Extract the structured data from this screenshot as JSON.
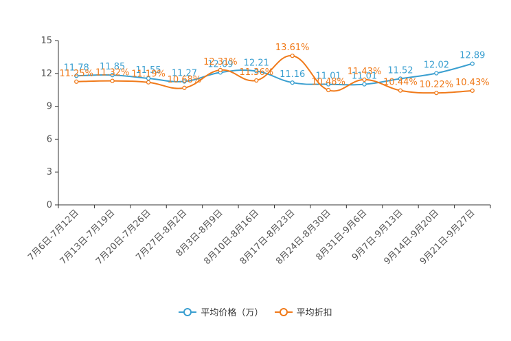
{
  "chart_data": {
    "type": "line",
    "categories": [
      "7月6日-7月12日",
      "7月13日-7月19日",
      "7月20日-7月26日",
      "7月27日-8月2日",
      "8月3日-8月9日",
      "8月10日-8月16日",
      "8月17日-8月23日",
      "8月24日-8月30日",
      "8月31日-9月6日",
      "9月7日-9月13日",
      "9月14日-9月20日",
      "9月21日-9月27日"
    ],
    "ylim": [
      0,
      15
    ],
    "yticks": [
      0,
      3,
      6,
      9,
      12,
      15
    ],
    "series": [
      {
        "name": "平均价格（万）",
        "color": "#3a9fd0",
        "values": [
          11.78,
          11.85,
          11.55,
          11.27,
          12.09,
          12.21,
          11.16,
          11.01,
          11.01,
          11.52,
          12.02,
          12.89
        ],
        "labels": [
          "11.78",
          "11.85",
          "11.55",
          "11.27",
          "12.09",
          "12.21",
          "11.16",
          "11.01",
          "11.01",
          "11.52",
          "12.02",
          "12.89"
        ]
      },
      {
        "name": "平均折扣",
        "color": "#f07a1a",
        "values": [
          11.25,
          11.32,
          11.19,
          10.68,
          12.31,
          11.36,
          13.61,
          10.48,
          11.43,
          10.44,
          10.22,
          10.43
        ],
        "labels": [
          "11.25%",
          "11.32%",
          "11.19%",
          "10.68%",
          "12.31%",
          "11.36%",
          "13.61%",
          "10.48%",
          "11.43%",
          "10.44%",
          "10.22%",
          "10.43%"
        ]
      }
    ],
    "legend_position": "bottom-center",
    "grid": false
  }
}
